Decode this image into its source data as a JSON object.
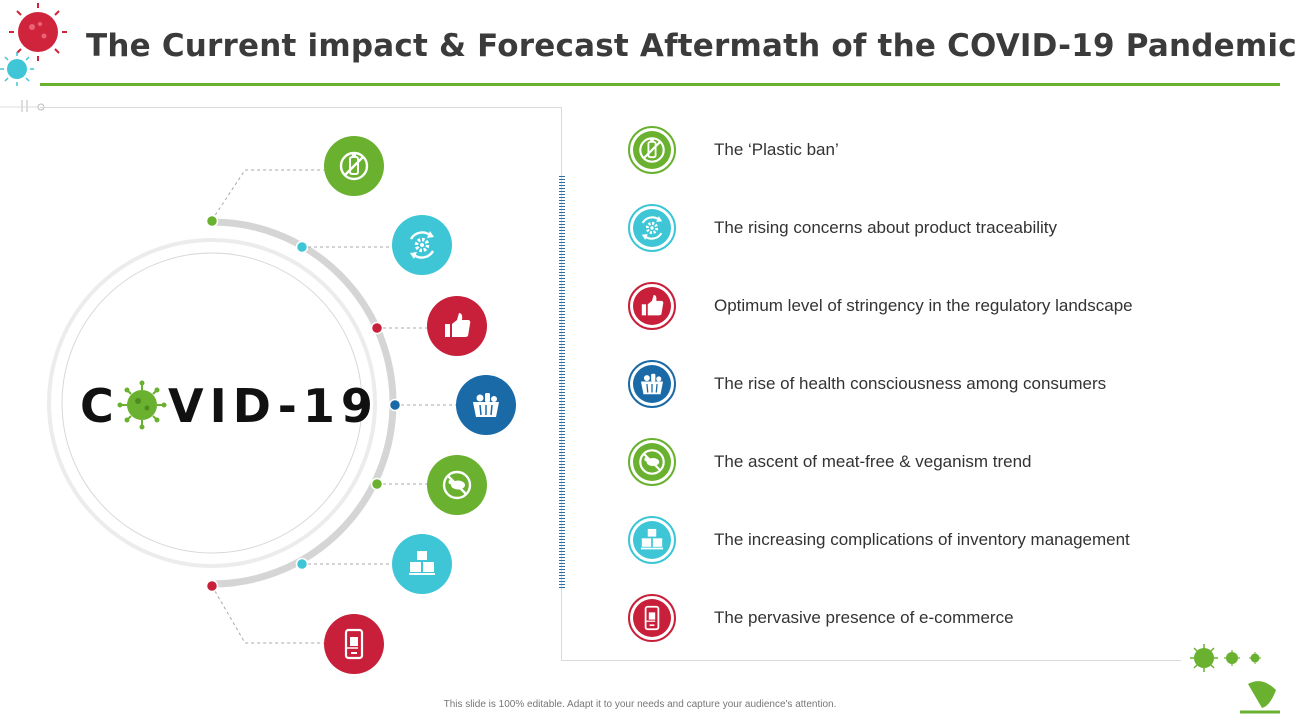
{
  "title": "The Current impact & Forecast Aftermath of the COVID-19 Pandemic",
  "center": {
    "prefix": "C",
    "suffix": "VID-19"
  },
  "items": [
    {
      "label": "The ‘Plastic ban’",
      "icon": "no-plastic-bottle-icon",
      "color": "#6ab130"
    },
    {
      "label": "The rising concerns about product traceability",
      "icon": "gear-cycle-icon",
      "color": "#3fc6d6"
    },
    {
      "label": "Optimum level of stringency in the regulatory landscape",
      "icon": "thumbs-up-icon",
      "color": "#c8203a"
    },
    {
      "label": "The rise of health consciousness among consumers",
      "icon": "grocery-basket-icon",
      "color": "#1a6aa8"
    },
    {
      "label": "The ascent of meat-free & veganism trend",
      "icon": "no-meat-icon",
      "color": "#6ab130"
    },
    {
      "label": "The increasing complications of inventory management",
      "icon": "stacked-boxes-icon",
      "color": "#3fc6d6"
    },
    {
      "label": "The pervasive presence of e-commerce",
      "icon": "mobile-shopping-icon",
      "color": "#c8203a"
    }
  ],
  "footer": "This slide is 100% editable. Adapt it to your needs and capture your audience's attention.",
  "colors": {
    "green": "#6ab130",
    "cyan": "#3fc6d6",
    "red": "#c8203a",
    "blue": "#1a6aa8"
  }
}
